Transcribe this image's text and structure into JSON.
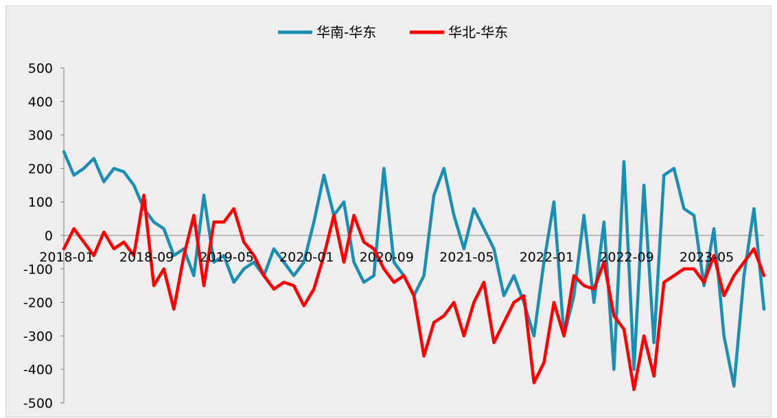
{
  "chart_data": {
    "type": "line",
    "title": "",
    "xlabel": "",
    "ylabel": "",
    "ylim": [
      -500,
      500
    ],
    "yticks": [
      500,
      400,
      300,
      200,
      100,
      0,
      -100,
      -200,
      -300,
      -400,
      -500
    ],
    "xlim": [
      "2018-01",
      "2023-11"
    ],
    "xtick_labels": [
      "2018-01",
      "2018-09",
      "2019-05",
      "2020-01",
      "2020-09",
      "2021-05",
      "2022-01",
      "2022-09",
      "2023-05"
    ],
    "legend_position": "top-center",
    "grid": false,
    "x": [
      "2018-01",
      "2018-02",
      "2018-03",
      "2018-04",
      "2018-05",
      "2018-06",
      "2018-07",
      "2018-08",
      "2018-09",
      "2018-10",
      "2018-11",
      "2018-12",
      "2019-01",
      "2019-02",
      "2019-03",
      "2019-04",
      "2019-05",
      "2019-06",
      "2019-07",
      "2019-08",
      "2019-09",
      "2019-10",
      "2019-11",
      "2019-12",
      "2020-01",
      "2020-02",
      "2020-03",
      "2020-04",
      "2020-05",
      "2020-06",
      "2020-07",
      "2020-08",
      "2020-09",
      "2020-10",
      "2020-11",
      "2020-12",
      "2021-01",
      "2021-02",
      "2021-03",
      "2021-04",
      "2021-05",
      "2021-06",
      "2021-07",
      "2021-08",
      "2021-09",
      "2021-10",
      "2021-11",
      "2021-12",
      "2022-01",
      "2022-02",
      "2022-03",
      "2022-04",
      "2022-05",
      "2022-06",
      "2022-07",
      "2022-08",
      "2022-09",
      "2022-10",
      "2022-11",
      "2022-12",
      "2023-01",
      "2023-02",
      "2023-03",
      "2023-04",
      "2023-05",
      "2023-06",
      "2023-07",
      "2023-08",
      "2023-09",
      "2023-10",
      "2023-11"
    ],
    "series": [
      {
        "name": "华南-华东",
        "color": "#1a8fb3",
        "values": [
          250,
          180,
          200,
          230,
          160,
          200,
          190,
          150,
          80,
          40,
          20,
          -60,
          -40,
          -120,
          120,
          -80,
          -60,
          -140,
          -100,
          -80,
          -120,
          -40,
          -80,
          -120,
          -80,
          40,
          180,
          60,
          100,
          -80,
          -140,
          -120,
          200,
          -80,
          -120,
          -180,
          -120,
          120,
          200,
          60,
          -40,
          80,
          20,
          -40,
          -180,
          -120,
          -200,
          -300,
          -80,
          100,
          -300,
          -180,
          60,
          -200,
          40,
          -400,
          220,
          -400,
          150,
          -320,
          180,
          200,
          80,
          60,
          -150,
          20,
          -300,
          -450,
          -120,
          80,
          -220
        ]
      },
      {
        "name": "华北-华东",
        "color": "#ff0000",
        "values": [
          -40,
          20,
          -20,
          -60,
          10,
          -40,
          -20,
          -60,
          120,
          -150,
          -100,
          -220,
          -60,
          60,
          -150,
          40,
          40,
          80,
          -20,
          -60,
          -120,
          -160,
          -140,
          -150,
          -210,
          -160,
          -60,
          60,
          -80,
          60,
          -20,
          -40,
          -100,
          -140,
          -120,
          -180,
          -360,
          -260,
          -240,
          -200,
          -300,
          -200,
          -140,
          -320,
          -260,
          -200,
          -180,
          -440,
          -380,
          -200,
          -300,
          -120,
          -150,
          -160,
          -80,
          -240,
          -280,
          -460,
          -300,
          -420,
          -140,
          -120,
          -100,
          -100,
          -140,
          -60,
          -180,
          -120,
          -80,
          -40,
          -120
        ]
      }
    ]
  }
}
